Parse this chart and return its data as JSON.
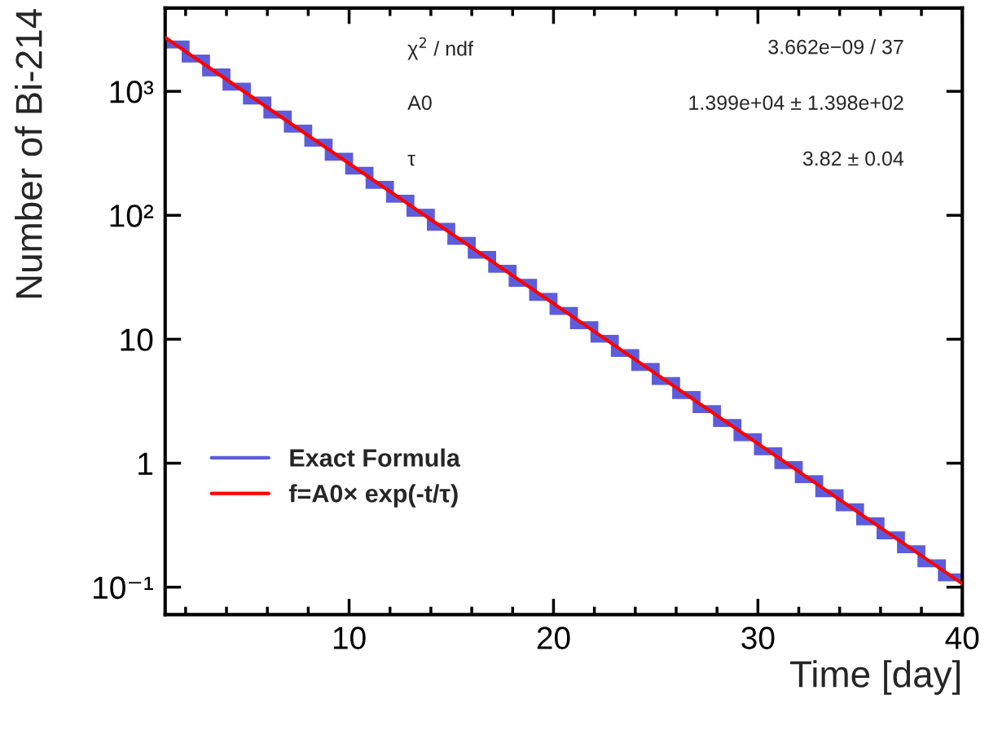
{
  "chart_data": {
    "type": "histogram",
    "xlabel": "Time [day]",
    "ylabel": "Number of Bi-214",
    "series": [
      {
        "type": "histogram",
        "name": "Exact Formula",
        "color": "#5c5cdc",
        "bins": [
          1,
          2,
          3,
          4,
          5,
          6,
          7,
          8,
          9,
          10,
          11,
          12,
          13,
          14,
          15,
          16,
          17,
          18,
          19,
          20,
          21,
          22,
          23,
          24,
          25,
          26,
          27,
          28,
          29,
          30,
          31,
          32,
          33,
          34,
          35,
          36,
          37,
          38,
          39,
          40
        ],
        "values": [
          2390,
          1840,
          1420,
          1090,
          842,
          649,
          500,
          385,
          297,
          229,
          176,
          136,
          105,
          80.8,
          62.3,
          48.0,
          37.0,
          28.5,
          22.0,
          16.9,
          13.0,
          10.1,
          7.75,
          5.97,
          4.6,
          3.55,
          2.73,
          2.11,
          1.62,
          1.25,
          0.964,
          0.743,
          0.573,
          0.441,
          0.34,
          0.262,
          0.202,
          0.156,
          0.12
        ]
      },
      {
        "type": "line",
        "name": "f=A0× exp(-t/τ)",
        "color": "#ff0000",
        "x": [
          1,
          40
        ],
        "values": [
          2720,
          0.1067
        ]
      }
    ],
    "log": "y",
    "xlim": [
      1,
      40
    ],
    "ylim": [
      0.06,
      4700
    ],
    "xticks": [
      10,
      20,
      30,
      40
    ],
    "yticks": [
      {
        "value": 0.1,
        "label": "10⁻¹"
      },
      1,
      10,
      {
        "value": 100,
        "label": "10²"
      },
      {
        "value": 1000,
        "label": "10³"
      }
    ],
    "grid": false,
    "legend": "bottom left",
    "annotations": [
      "χ$^{2}$ / ndf",
      "3.662e−09 / 37",
      "A0",
      "1.399e+04 ± 1.398e+02",
      "τ",
      "3.82 ± 0.04"
    ]
  }
}
